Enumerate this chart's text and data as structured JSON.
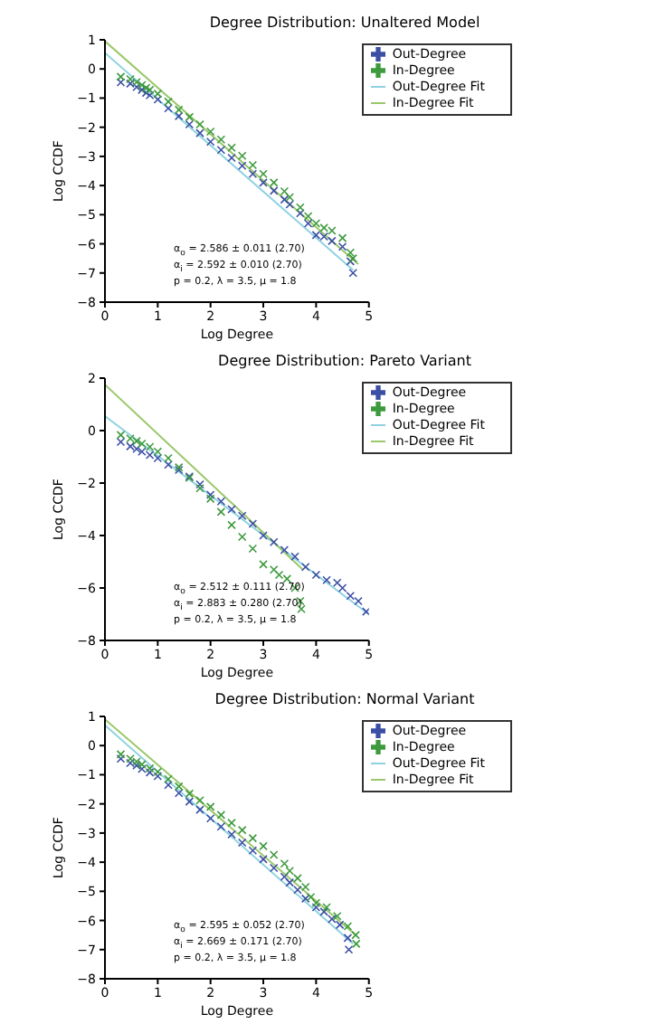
{
  "chart_data": [
    {
      "type": "scatter",
      "title": "Degree Distribution: Unaltered Model",
      "xlabel": "Log Degree",
      "ylabel": "Log CCDF",
      "xlim": [
        0,
        5
      ],
      "xticks": [
        0,
        1,
        2,
        3,
        4,
        5
      ],
      "ylim": [
        -8,
        1
      ],
      "yticks": [
        1,
        0,
        -1,
        -2,
        -3,
        -4,
        -5,
        -6,
        -7,
        -8
      ],
      "marker": "cross",
      "legend": "top right",
      "annotations": [
        "α$_{o}$ = 2.586 ± 0.011 (2.70)",
        "α$_{i}$ = 2.592 ± 0.010 (2.70)",
        "p = 0.2, λ = 3.5, μ = 1.8"
      ],
      "series": [
        {
          "name": "Out-Degree",
          "type": "scatter",
          "color": "#3b4fa5",
          "x": [
            0.3,
            0.48,
            0.6,
            0.7,
            0.78,
            0.85,
            1,
            1.2,
            1.4,
            1.6,
            1.8,
            2,
            2.2,
            2.4,
            2.6,
            2.8,
            3,
            3.2,
            3.4,
            3.5,
            3.7,
            3.85,
            4,
            4.15,
            4.3,
            4.5,
            4.65,
            4.7
          ],
          "values": [
            -0.46,
            -0.5,
            -0.62,
            -0.72,
            -0.82,
            -0.9,
            -1.05,
            -1.35,
            -1.62,
            -1.9,
            -2.2,
            -2.5,
            -2.78,
            -3.05,
            -3.32,
            -3.6,
            -3.9,
            -4.18,
            -4.48,
            -4.65,
            -4.95,
            -5.3,
            -5.7,
            -5.75,
            -5.9,
            -6.1,
            -6.6,
            -7.0
          ]
        },
        {
          "name": "In-Degree",
          "type": "scatter",
          "color": "#3d9a3d",
          "x": [
            0.3,
            0.48,
            0.6,
            0.7,
            0.78,
            0.85,
            1,
            1.2,
            1.4,
            1.6,
            1.8,
            2,
            2.2,
            2.4,
            2.6,
            2.8,
            3,
            3.2,
            3.4,
            3.5,
            3.7,
            3.85,
            4,
            4.15,
            4.3,
            4.5,
            4.65,
            4.7
          ],
          "values": [
            -0.27,
            -0.35,
            -0.45,
            -0.55,
            -0.65,
            -0.72,
            -0.85,
            -1.12,
            -1.4,
            -1.65,
            -1.9,
            -2.15,
            -2.42,
            -2.7,
            -2.98,
            -3.3,
            -3.6,
            -3.9,
            -4.2,
            -4.4,
            -4.75,
            -5.05,
            -5.3,
            -5.45,
            -5.55,
            -5.8,
            -6.3,
            -6.5
          ]
        },
        {
          "name": "Out-Degree Fit",
          "type": "line",
          "marker": "none",
          "color": "#8fd3e0",
          "x": [
            0,
            4.7
          ],
          "values": [
            0.55,
            -6.9
          ]
        },
        {
          "name": "In-Degree Fit",
          "type": "line",
          "marker": "none",
          "color": "#9ac86b",
          "x": [
            0,
            4.8
          ],
          "values": [
            0.95,
            -6.7
          ]
        }
      ]
    },
    {
      "type": "scatter",
      "title": "Degree Distribution: Pareto Variant",
      "xlabel": "Log Degree",
      "ylabel": "Log CCDF",
      "xlim": [
        0,
        5
      ],
      "xticks": [
        0,
        1,
        2,
        3,
        4,
        5
      ],
      "ylim": [
        -8,
        2
      ],
      "yticks": [
        2,
        0,
        -2,
        -4,
        -6,
        -8
      ],
      "marker": "cross",
      "legend": "top right",
      "annotations": [
        "α$_{o}$ = 2.512 ± 0.111 (2.70)",
        "α$_{i}$ = 2.883 ± 0.280 (2.70)",
        "p = 0.2, λ = 3.5, μ = 1.8"
      ],
      "series": [
        {
          "name": "Out-Degree",
          "type": "scatter",
          "color": "#3b4fa5",
          "x": [
            0.3,
            0.48,
            0.6,
            0.7,
            0.85,
            1,
            1.2,
            1.4,
            1.6,
            1.8,
            2,
            2.2,
            2.4,
            2.6,
            2.8,
            3,
            3.2,
            3.4,
            3.6,
            3.8,
            4,
            4.2,
            4.4,
            4.5,
            4.65,
            4.8,
            4.95
          ],
          "values": [
            -0.43,
            -0.6,
            -0.7,
            -0.8,
            -0.93,
            -1.05,
            -1.3,
            -1.5,
            -1.75,
            -2.05,
            -2.45,
            -2.7,
            -3.0,
            -3.25,
            -3.55,
            -4.0,
            -4.25,
            -4.55,
            -4.8,
            -5.2,
            -5.5,
            -5.7,
            -5.8,
            -6.0,
            -6.3,
            -6.5,
            -6.9
          ]
        },
        {
          "name": "In-Degree",
          "type": "scatter",
          "color": "#3d9a3d",
          "x": [
            0.3,
            0.48,
            0.6,
            0.7,
            0.85,
            1,
            1.2,
            1.4,
            1.6,
            1.8,
            2,
            2.2,
            2.4,
            2.6,
            2.8,
            3,
            3.2,
            3.3,
            3.45,
            3.6,
            3.7,
            3.72
          ],
          "values": [
            -0.17,
            -0.3,
            -0.4,
            -0.5,
            -0.62,
            -0.8,
            -1.05,
            -1.4,
            -1.8,
            -2.2,
            -2.6,
            -3.1,
            -3.6,
            -4.05,
            -4.5,
            -5.1,
            -5.3,
            -5.5,
            -5.65,
            -6.0,
            -6.5,
            -6.8
          ]
        },
        {
          "name": "Out-Degree Fit",
          "type": "line",
          "marker": "none",
          "color": "#8fd3e0",
          "x": [
            0,
            5
          ],
          "values": [
            0.55,
            -7.0
          ]
        },
        {
          "name": "In-Degree Fit",
          "type": "line",
          "marker": "none",
          "color": "#9ac86b",
          "x": [
            0,
            3.75
          ],
          "values": [
            1.75,
            -5.3
          ]
        }
      ]
    },
    {
      "type": "scatter",
      "title": "Degree Distribution: Normal Variant",
      "xlabel": "Log Degree",
      "ylabel": "Log CCDF",
      "xlim": [
        0,
        5
      ],
      "xticks": [
        0,
        1,
        2,
        3,
        4,
        5
      ],
      "ylim": [
        -8,
        1
      ],
      "yticks": [
        1,
        0,
        -1,
        -2,
        -3,
        -4,
        -5,
        -6,
        -7,
        -8
      ],
      "marker": "cross",
      "legend": "top right",
      "annotations": [
        "α$_{o}$ = 2.595 ± 0.052 (2.70)",
        "α$_{i}$ = 2.669 ± 0.171 (2.70)",
        "p = 0.2, λ = 3.5, μ = 1.8"
      ],
      "series": [
        {
          "name": "Out-Degree",
          "type": "scatter",
          "color": "#3b4fa5",
          "x": [
            0.3,
            0.48,
            0.6,
            0.7,
            0.85,
            1,
            1.2,
            1.4,
            1.6,
            1.8,
            2,
            2.2,
            2.4,
            2.6,
            2.8,
            3,
            3.2,
            3.4,
            3.5,
            3.65,
            3.8,
            4,
            4.15,
            4.3,
            4.45,
            4.6,
            4.62
          ],
          "values": [
            -0.45,
            -0.6,
            -0.68,
            -0.8,
            -0.92,
            -1.05,
            -1.35,
            -1.63,
            -1.92,
            -2.2,
            -2.5,
            -2.78,
            -3.05,
            -3.33,
            -3.6,
            -3.9,
            -4.2,
            -4.5,
            -4.7,
            -4.95,
            -5.25,
            -5.55,
            -5.7,
            -5.95,
            -6.15,
            -6.6,
            -7.0
          ]
        },
        {
          "name": "In-Degree",
          "type": "scatter",
          "color": "#3d9a3d",
          "x": [
            0.3,
            0.48,
            0.6,
            0.7,
            0.85,
            1,
            1.2,
            1.4,
            1.6,
            1.8,
            2,
            2.2,
            2.4,
            2.6,
            2.8,
            3,
            3.2,
            3.4,
            3.5,
            3.65,
            3.8,
            3.9,
            4,
            4.2,
            4.4,
            4.6,
            4.75,
            4.76
          ],
          "values": [
            -0.3,
            -0.45,
            -0.55,
            -0.65,
            -0.78,
            -0.9,
            -1.15,
            -1.4,
            -1.65,
            -1.88,
            -2.1,
            -2.38,
            -2.65,
            -2.9,
            -3.18,
            -3.45,
            -3.75,
            -4.05,
            -4.3,
            -4.55,
            -4.85,
            -5.2,
            -5.4,
            -5.55,
            -5.85,
            -6.2,
            -6.5,
            -6.8
          ]
        },
        {
          "name": "Out-Degree Fit",
          "type": "line",
          "marker": "none",
          "color": "#8fd3e0",
          "x": [
            0,
            4.7
          ],
          "values": [
            0.7,
            -6.8
          ]
        },
        {
          "name": "In-Degree Fit",
          "type": "line",
          "marker": "none",
          "color": "#9ac86b",
          "x": [
            0,
            4.75
          ],
          "values": [
            0.9,
            -6.5
          ]
        }
      ]
    }
  ]
}
